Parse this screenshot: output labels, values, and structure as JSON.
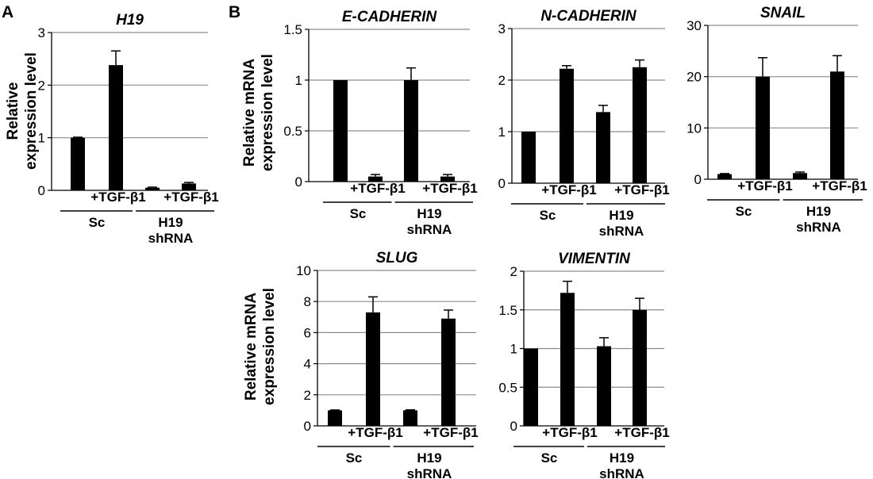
{
  "panels": [
    {
      "label": "A"
    },
    {
      "label": "B"
    }
  ],
  "ylabels": [
    {
      "lines": [
        "Relative",
        "expression level"
      ]
    },
    {
      "lines": [
        "Relative mRNA",
        "expression level"
      ]
    },
    {
      "lines": [
        "Relative mRNA",
        "expression level"
      ]
    }
  ],
  "condition_label": "+TGF-β1",
  "group_labels": {
    "sc": "Sc",
    "h19_line1": "H19",
    "h19_line2": "shRNA"
  },
  "chart_data": [
    {
      "type": "bar",
      "title": "H19",
      "ylim": [
        0,
        3
      ],
      "yticks": [
        0,
        1,
        2,
        3
      ],
      "ytick_labels": [
        "0",
        "1",
        "2",
        "3"
      ],
      "categories": [
        "Sc",
        "Sc +TGF-β1",
        "H19 shRNA",
        "H19 shRNA +TGF-β1"
      ],
      "values": [
        1,
        2.38,
        0.05,
        0.13
      ],
      "errors": [
        0.01,
        0.27,
        0.01,
        0.02
      ]
    },
    {
      "type": "bar",
      "title": "E-CADHERIN",
      "ylim": [
        0,
        1.5
      ],
      "yticks": [
        0,
        0.5,
        1,
        1.5
      ],
      "ytick_labels": [
        "0",
        "0.5",
        "1",
        "1.5"
      ],
      "categories": [
        "Sc",
        "Sc +TGF-β1",
        "H19 shRNA",
        "H19 shRNA +TGF-β1"
      ],
      "values": [
        1,
        0.05,
        1,
        0.05
      ],
      "errors": [
        0,
        0.02,
        0.12,
        0.02
      ]
    },
    {
      "type": "bar",
      "title": "N-CADHERIN",
      "ylim": [
        0,
        3
      ],
      "yticks": [
        0,
        1,
        2,
        3
      ],
      "ytick_labels": [
        "0",
        "1",
        "2",
        "3"
      ],
      "categories": [
        "Sc",
        "Sc +TGF-β1",
        "H19 shRNA",
        "H19 shRNA +TGF-β1"
      ],
      "values": [
        1,
        2.22,
        1.38,
        2.25
      ],
      "errors": [
        0,
        0.06,
        0.13,
        0.14
      ]
    },
    {
      "type": "bar",
      "title": "SNAIL",
      "ylim": [
        0,
        30
      ],
      "yticks": [
        0,
        10,
        20,
        30
      ],
      "ytick_labels": [
        "0",
        "10",
        "20",
        "30"
      ],
      "categories": [
        "Sc",
        "Sc +TGF-β1",
        "H19 shRNA",
        "H19 shRNA +TGF-β1"
      ],
      "values": [
        1,
        20,
        1.2,
        21
      ],
      "errors": [
        0.1,
        3.7,
        0.2,
        3.1
      ]
    },
    {
      "type": "bar",
      "title": "SLUG",
      "ylim": [
        0,
        10
      ],
      "yticks": [
        0,
        2,
        4,
        6,
        8,
        10
      ],
      "ytick_labels": [
        "0",
        "2",
        "4",
        "6",
        "8",
        "10"
      ],
      "categories": [
        "Sc",
        "Sc +TGF-β1",
        "H19 shRNA",
        "H19 shRNA +TGF-β1"
      ],
      "values": [
        1,
        7.3,
        1,
        6.9
      ],
      "errors": [
        0.02,
        1,
        0.03,
        0.55
      ]
    },
    {
      "type": "bar",
      "title": "VIMENTIN",
      "ylim": [
        0,
        2
      ],
      "yticks": [
        0,
        0.5,
        1,
        1.5,
        2
      ],
      "ytick_labels": [
        "0",
        "0.5",
        "1",
        "1.5",
        "2"
      ],
      "categories": [
        "Sc",
        "Sc +TGF-β1",
        "H19 shRNA",
        "H19 shRNA +TGF-β1"
      ],
      "values": [
        1,
        1.72,
        1.03,
        1.5
      ],
      "errors": [
        0,
        0.15,
        0.11,
        0.15
      ]
    }
  ]
}
